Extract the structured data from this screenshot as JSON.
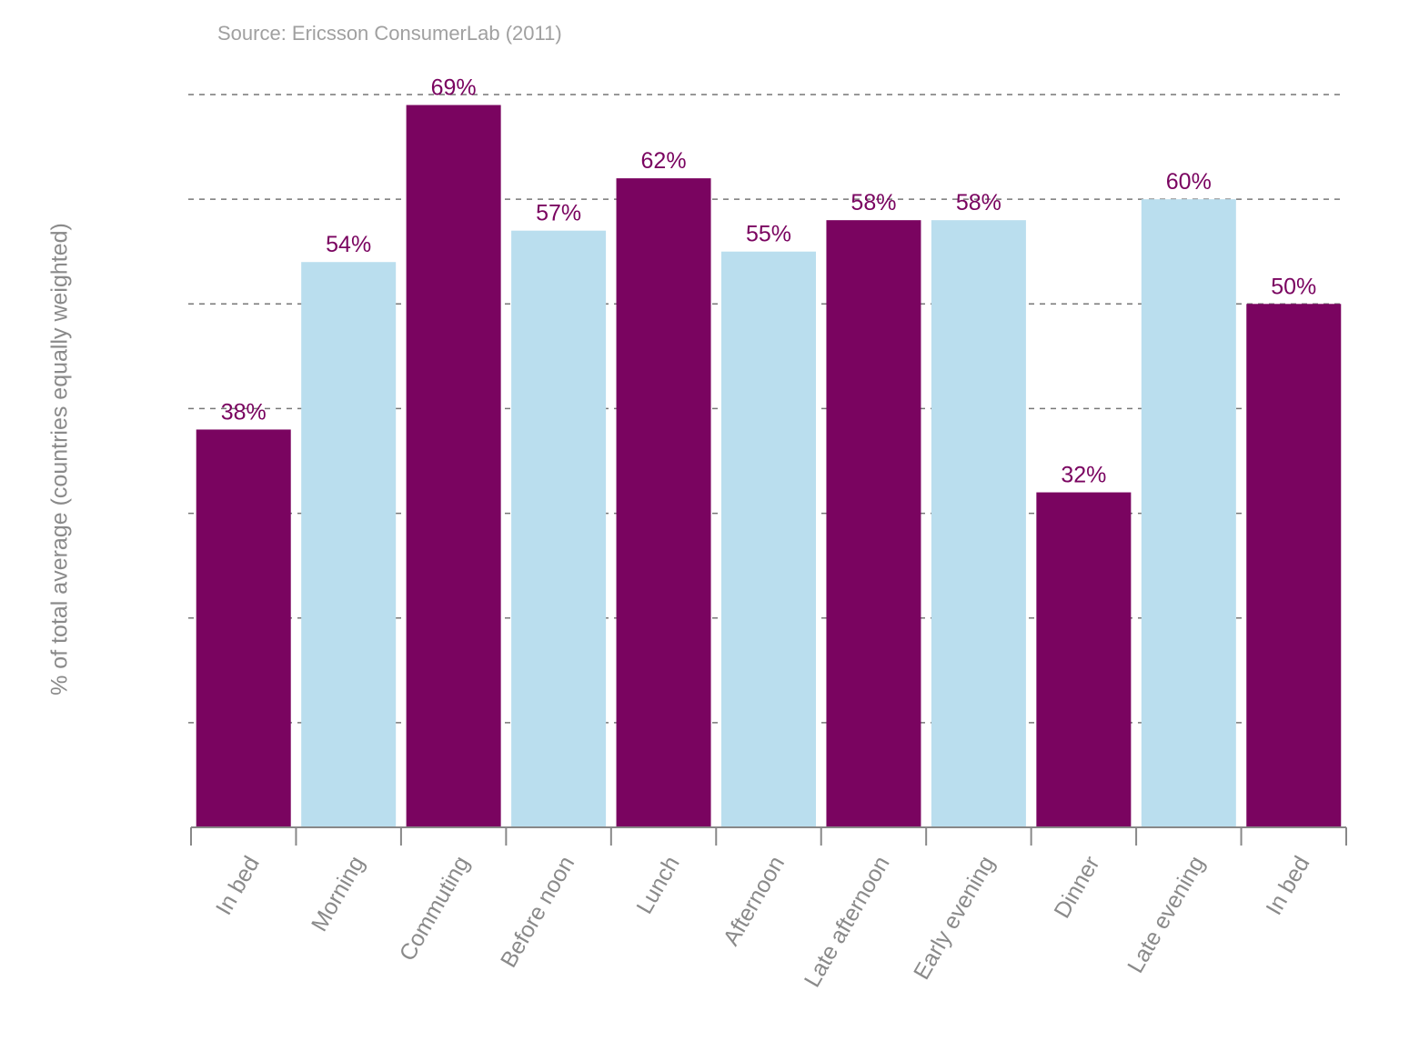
{
  "chart_data": {
    "type": "bar",
    "title": "",
    "subtitle": "Source: Ericsson ConsumerLab (2011)",
    "xlabel": "",
    "ylabel": "% of total average (countries equally weighted)",
    "categories": [
      "In bed",
      "Morning",
      "Commuting",
      "Before noon",
      "Lunch",
      "Afternoon",
      "Late afternoon",
      "Early evening",
      "Dinner",
      "Late evening",
      "In bed"
    ],
    "values": [
      38,
      54,
      69,
      57,
      62,
      55,
      58,
      58,
      32,
      60,
      50
    ],
    "data_labels": [
      "38%",
      "54%",
      "69%",
      "57%",
      "62%",
      "55%",
      "58%",
      "58%",
      "32%",
      "60%",
      "50%"
    ],
    "bar_colors": [
      "#7a0460",
      "#badeee",
      "#7a0460",
      "#badeee",
      "#7a0460",
      "#badeee",
      "#7a0460",
      "#badeee",
      "#7a0460",
      "#badeee",
      "#7a0460"
    ],
    "label_color": "#7a0460",
    "ylim": [
      0,
      70
    ],
    "grid": true,
    "grid_step": 10,
    "grid_style": "dashed",
    "y_tick_labels": "none",
    "legend": "none"
  }
}
